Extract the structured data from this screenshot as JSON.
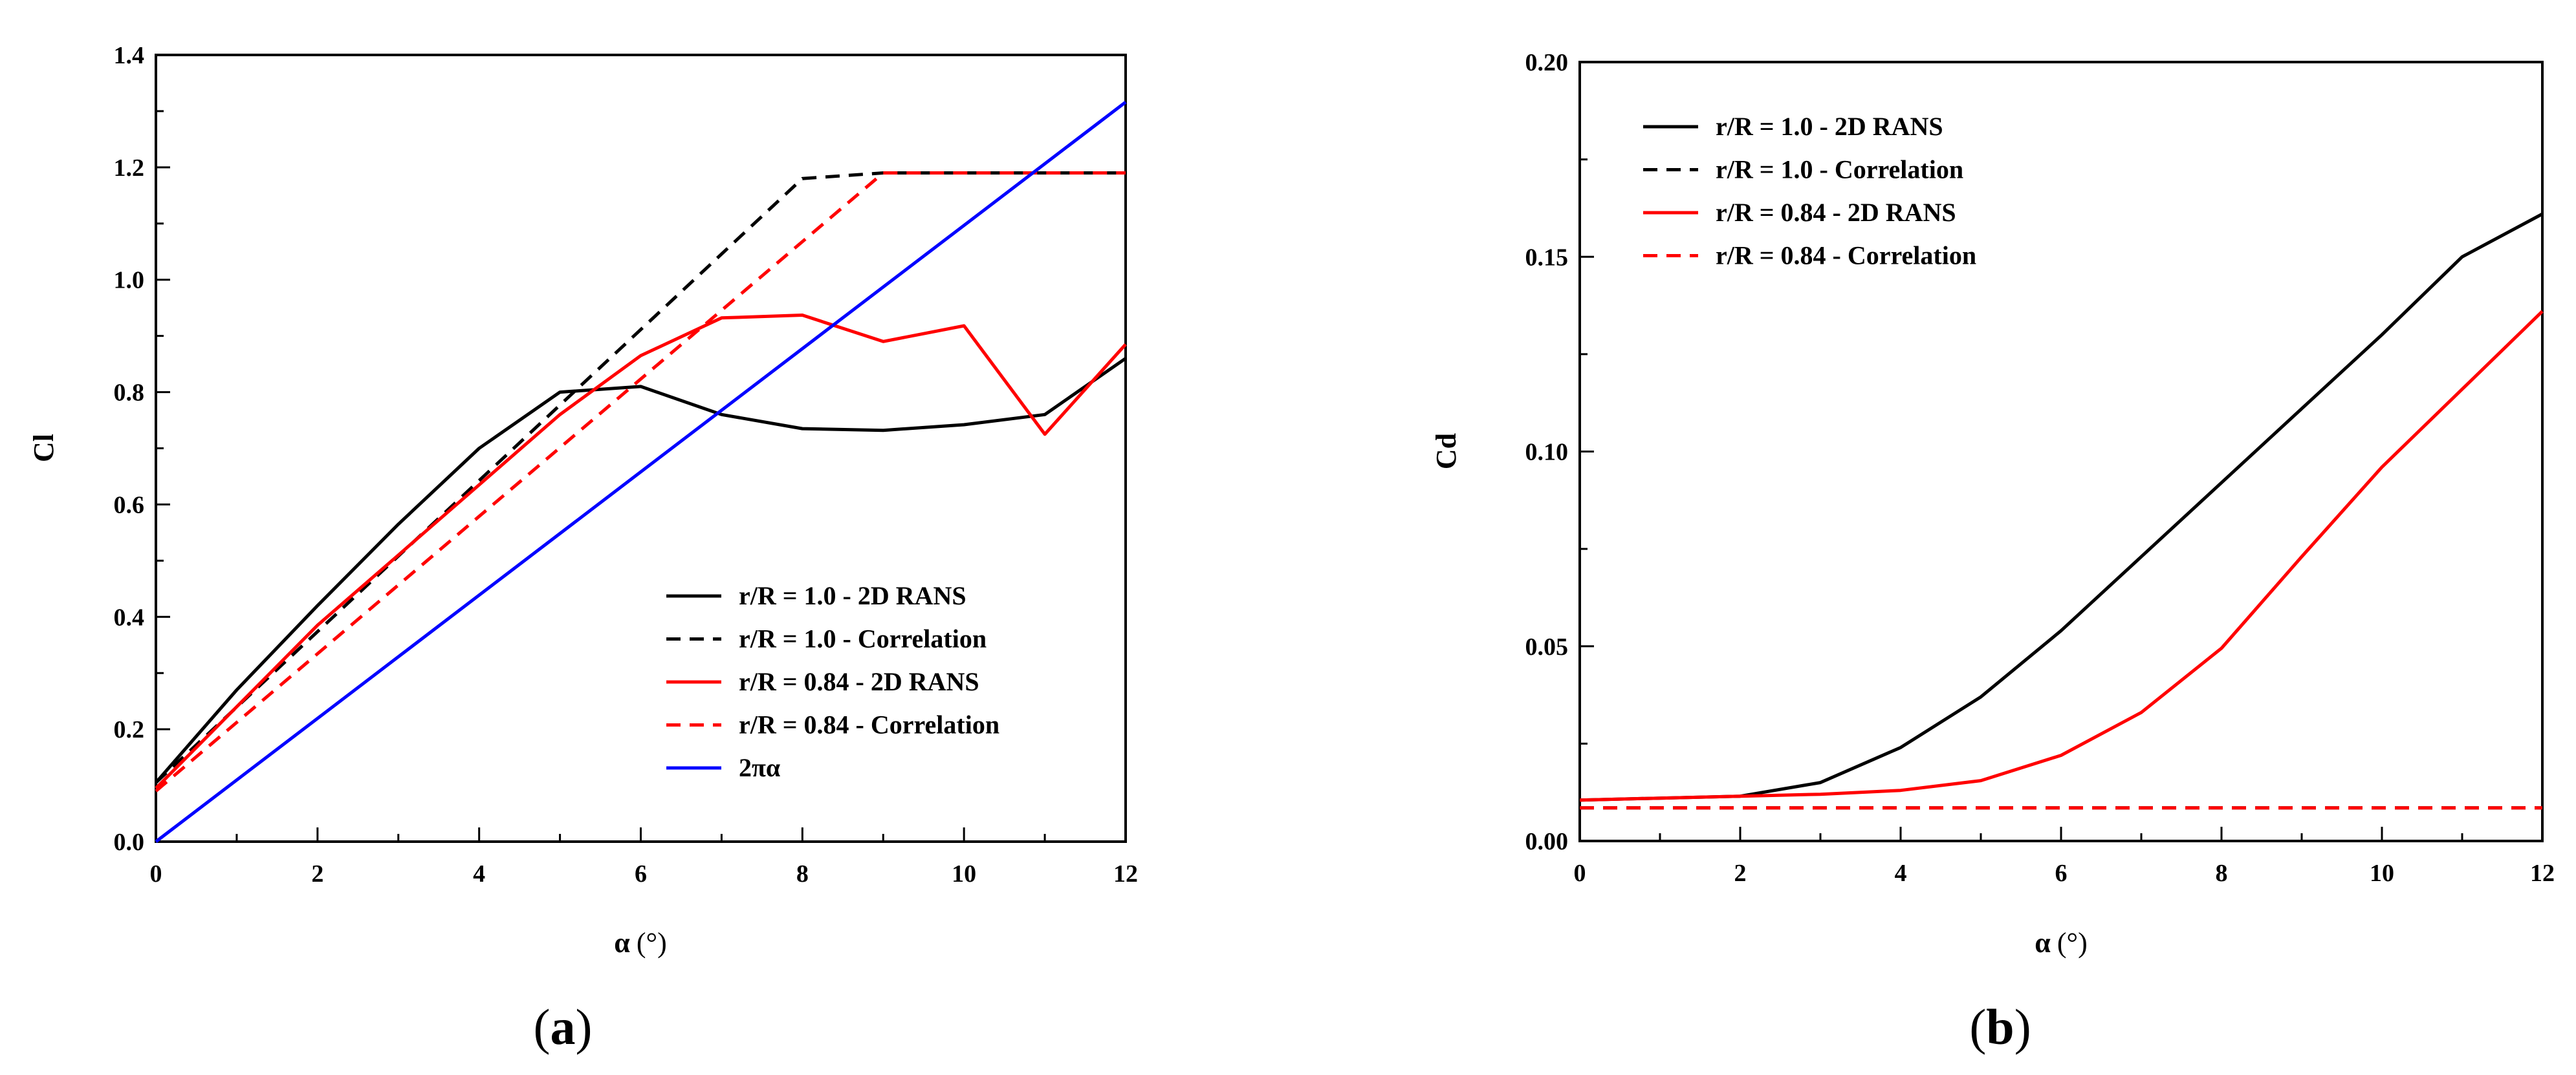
{
  "chart_data": [
    {
      "type": "line",
      "panel_label": "(a)",
      "panel_prefix": "(",
      "panel_letter": "a",
      "panel_suffix": ")",
      "xlabel": "α",
      "xlabel_unit": "(°)",
      "ylabel": "Cl",
      "xlim": [
        0,
        12
      ],
      "ylim": [
        0,
        1.4
      ],
      "xticks": [
        0,
        2,
        4,
        6,
        8,
        10,
        12
      ],
      "xtick_labels": [
        "0",
        "2",
        "4",
        "6",
        "8",
        "10",
        "12"
      ],
      "yticks": [
        0,
        0.2,
        0.4,
        0.6,
        0.8,
        1.0,
        1.2,
        1.4
      ],
      "ytick_labels": [
        "0.0",
        "0.2",
        "0.4",
        "0.6",
        "0.8",
        "1.0",
        "1.2",
        "1.4"
      ],
      "legend_position": "bottom-right",
      "series": [
        {
          "name": "r/R = 1.0 - 2D RANS",
          "color": "#000000",
          "style": "solid",
          "x": [
            0,
            1,
            2,
            3,
            4,
            5,
            6,
            7,
            8,
            9,
            10,
            11,
            12
          ],
          "y": [
            0.105,
            0.27,
            0.42,
            0.565,
            0.7,
            0.8,
            0.81,
            0.76,
            0.735,
            0.732,
            0.742,
            0.76,
            0.86
          ]
        },
        {
          "name": "r/R = 1.0 - Correlation",
          "color": "#000000",
          "style": "dashed",
          "x": [
            0,
            8,
            9,
            12
          ],
          "y": [
            0.105,
            1.18,
            1.19,
            1.19
          ]
        },
        {
          "name": "r/R = 0.84 - 2D RANS",
          "color": "#ff0000",
          "style": "solid",
          "x": [
            0,
            1,
            2,
            3,
            4,
            5,
            6,
            7,
            8,
            9,
            10,
            11,
            12
          ],
          "y": [
            0.095,
            0.24,
            0.385,
            0.51,
            0.635,
            0.76,
            0.865,
            0.932,
            0.937,
            0.89,
            0.918,
            0.725,
            0.885
          ]
        },
        {
          "name": "r/R = 0.84 - Correlation",
          "color": "#ff0000",
          "style": "dashed",
          "x": [
            0,
            9,
            12
          ],
          "y": [
            0.09,
            1.19,
            1.19
          ]
        },
        {
          "name": "2πα",
          "color": "#0000ff",
          "style": "solid",
          "x": [
            0,
            12
          ],
          "y": [
            0,
            1.316
          ]
        }
      ]
    },
    {
      "type": "line",
      "panel_label": "(b)",
      "panel_prefix": "(",
      "panel_letter": "b",
      "panel_suffix": ")",
      "xlabel": "α",
      "xlabel_unit": "(°)",
      "ylabel": "Cd",
      "xlim": [
        0,
        12
      ],
      "ylim": [
        0,
        0.2
      ],
      "xticks": [
        0,
        2,
        4,
        6,
        8,
        10,
        12
      ],
      "xtick_labels": [
        "0",
        "2",
        "4",
        "6",
        "8",
        "10",
        "12"
      ],
      "yticks": [
        0,
        0.05,
        0.1,
        0.15,
        0.2
      ],
      "ytick_labels": [
        "0.00",
        "0.05",
        "0.10",
        "0.15",
        "0.20"
      ],
      "legend_position": "top-left",
      "series": [
        {
          "name": "r/R = 1.0 - 2D RANS",
          "color": "#000000",
          "style": "solid",
          "x": [
            0,
            1,
            2,
            3,
            4,
            5,
            6,
            7,
            8,
            9,
            10,
            11,
            12
          ],
          "y": [
            0.0105,
            0.011,
            0.0115,
            0.015,
            0.024,
            0.037,
            0.054,
            0.073,
            0.092,
            0.111,
            0.13,
            0.15,
            0.161
          ]
        },
        {
          "name": "r/R = 1.0 - Correlation",
          "color": "#000000",
          "style": "dashed",
          "x": [
            0,
            12
          ],
          "y": [
            0.0085,
            0.0085
          ]
        },
        {
          "name": "r/R = 0.84 - 2D RANS",
          "color": "#ff0000",
          "style": "solid",
          "x": [
            0,
            1,
            2,
            3,
            4,
            5,
            6,
            7,
            8,
            9,
            10,
            11,
            12
          ],
          "y": [
            0.0105,
            0.011,
            0.0115,
            0.012,
            0.013,
            0.0155,
            0.022,
            0.033,
            0.0495,
            0.073,
            0.096,
            0.116,
            0.136
          ]
        },
        {
          "name": "r/R = 0.84 - Correlation",
          "color": "#ff0000",
          "style": "dashed",
          "x": [
            0,
            12
          ],
          "y": [
            0.0085,
            0.0085
          ]
        }
      ]
    }
  ]
}
